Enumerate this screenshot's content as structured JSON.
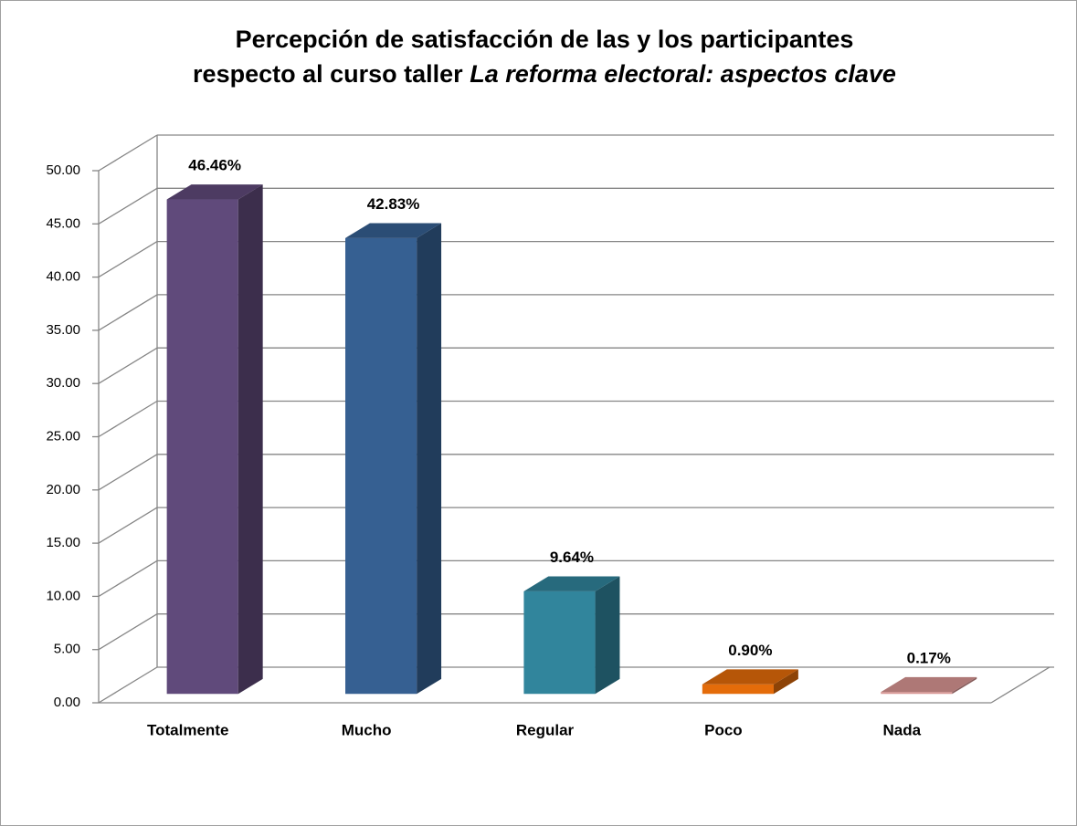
{
  "chart_data": {
    "type": "bar3d",
    "title": {
      "line1": "Percepción de satisfacción de las y los participantes",
      "line2": "respecto al curso taller",
      "line2_italic": "La reforma electoral: aspectos clave"
    },
    "categories": [
      "Totalmente",
      "Mucho",
      "Regular",
      "Poco",
      "Nada"
    ],
    "values": [
      46.46,
      42.83,
      9.64,
      0.9,
      0.17
    ],
    "value_labels": [
      "46.46%",
      "42.83%",
      "9.64%",
      "0.90%",
      "0.17%"
    ],
    "colors": [
      "#604a7b",
      "#366092",
      "#31859c",
      "#e46c0a",
      "#d99694"
    ],
    "ylim": [
      0,
      50
    ],
    "yticks": [
      {
        "value": 0,
        "label": "0.00"
      },
      {
        "value": 5,
        "label": "5.00"
      },
      {
        "value": 10,
        "label": "10.00"
      },
      {
        "value": 15,
        "label": "15.00"
      },
      {
        "value": 20,
        "label": "20.00"
      },
      {
        "value": 25,
        "label": "25.00"
      },
      {
        "value": 30,
        "label": "30.00"
      },
      {
        "value": 35,
        "label": "35.00"
      },
      {
        "value": 40,
        "label": "40.00"
      },
      {
        "value": 45,
        "label": "45.00"
      },
      {
        "value": 50,
        "label": "50.00"
      }
    ],
    "grid": true
  }
}
